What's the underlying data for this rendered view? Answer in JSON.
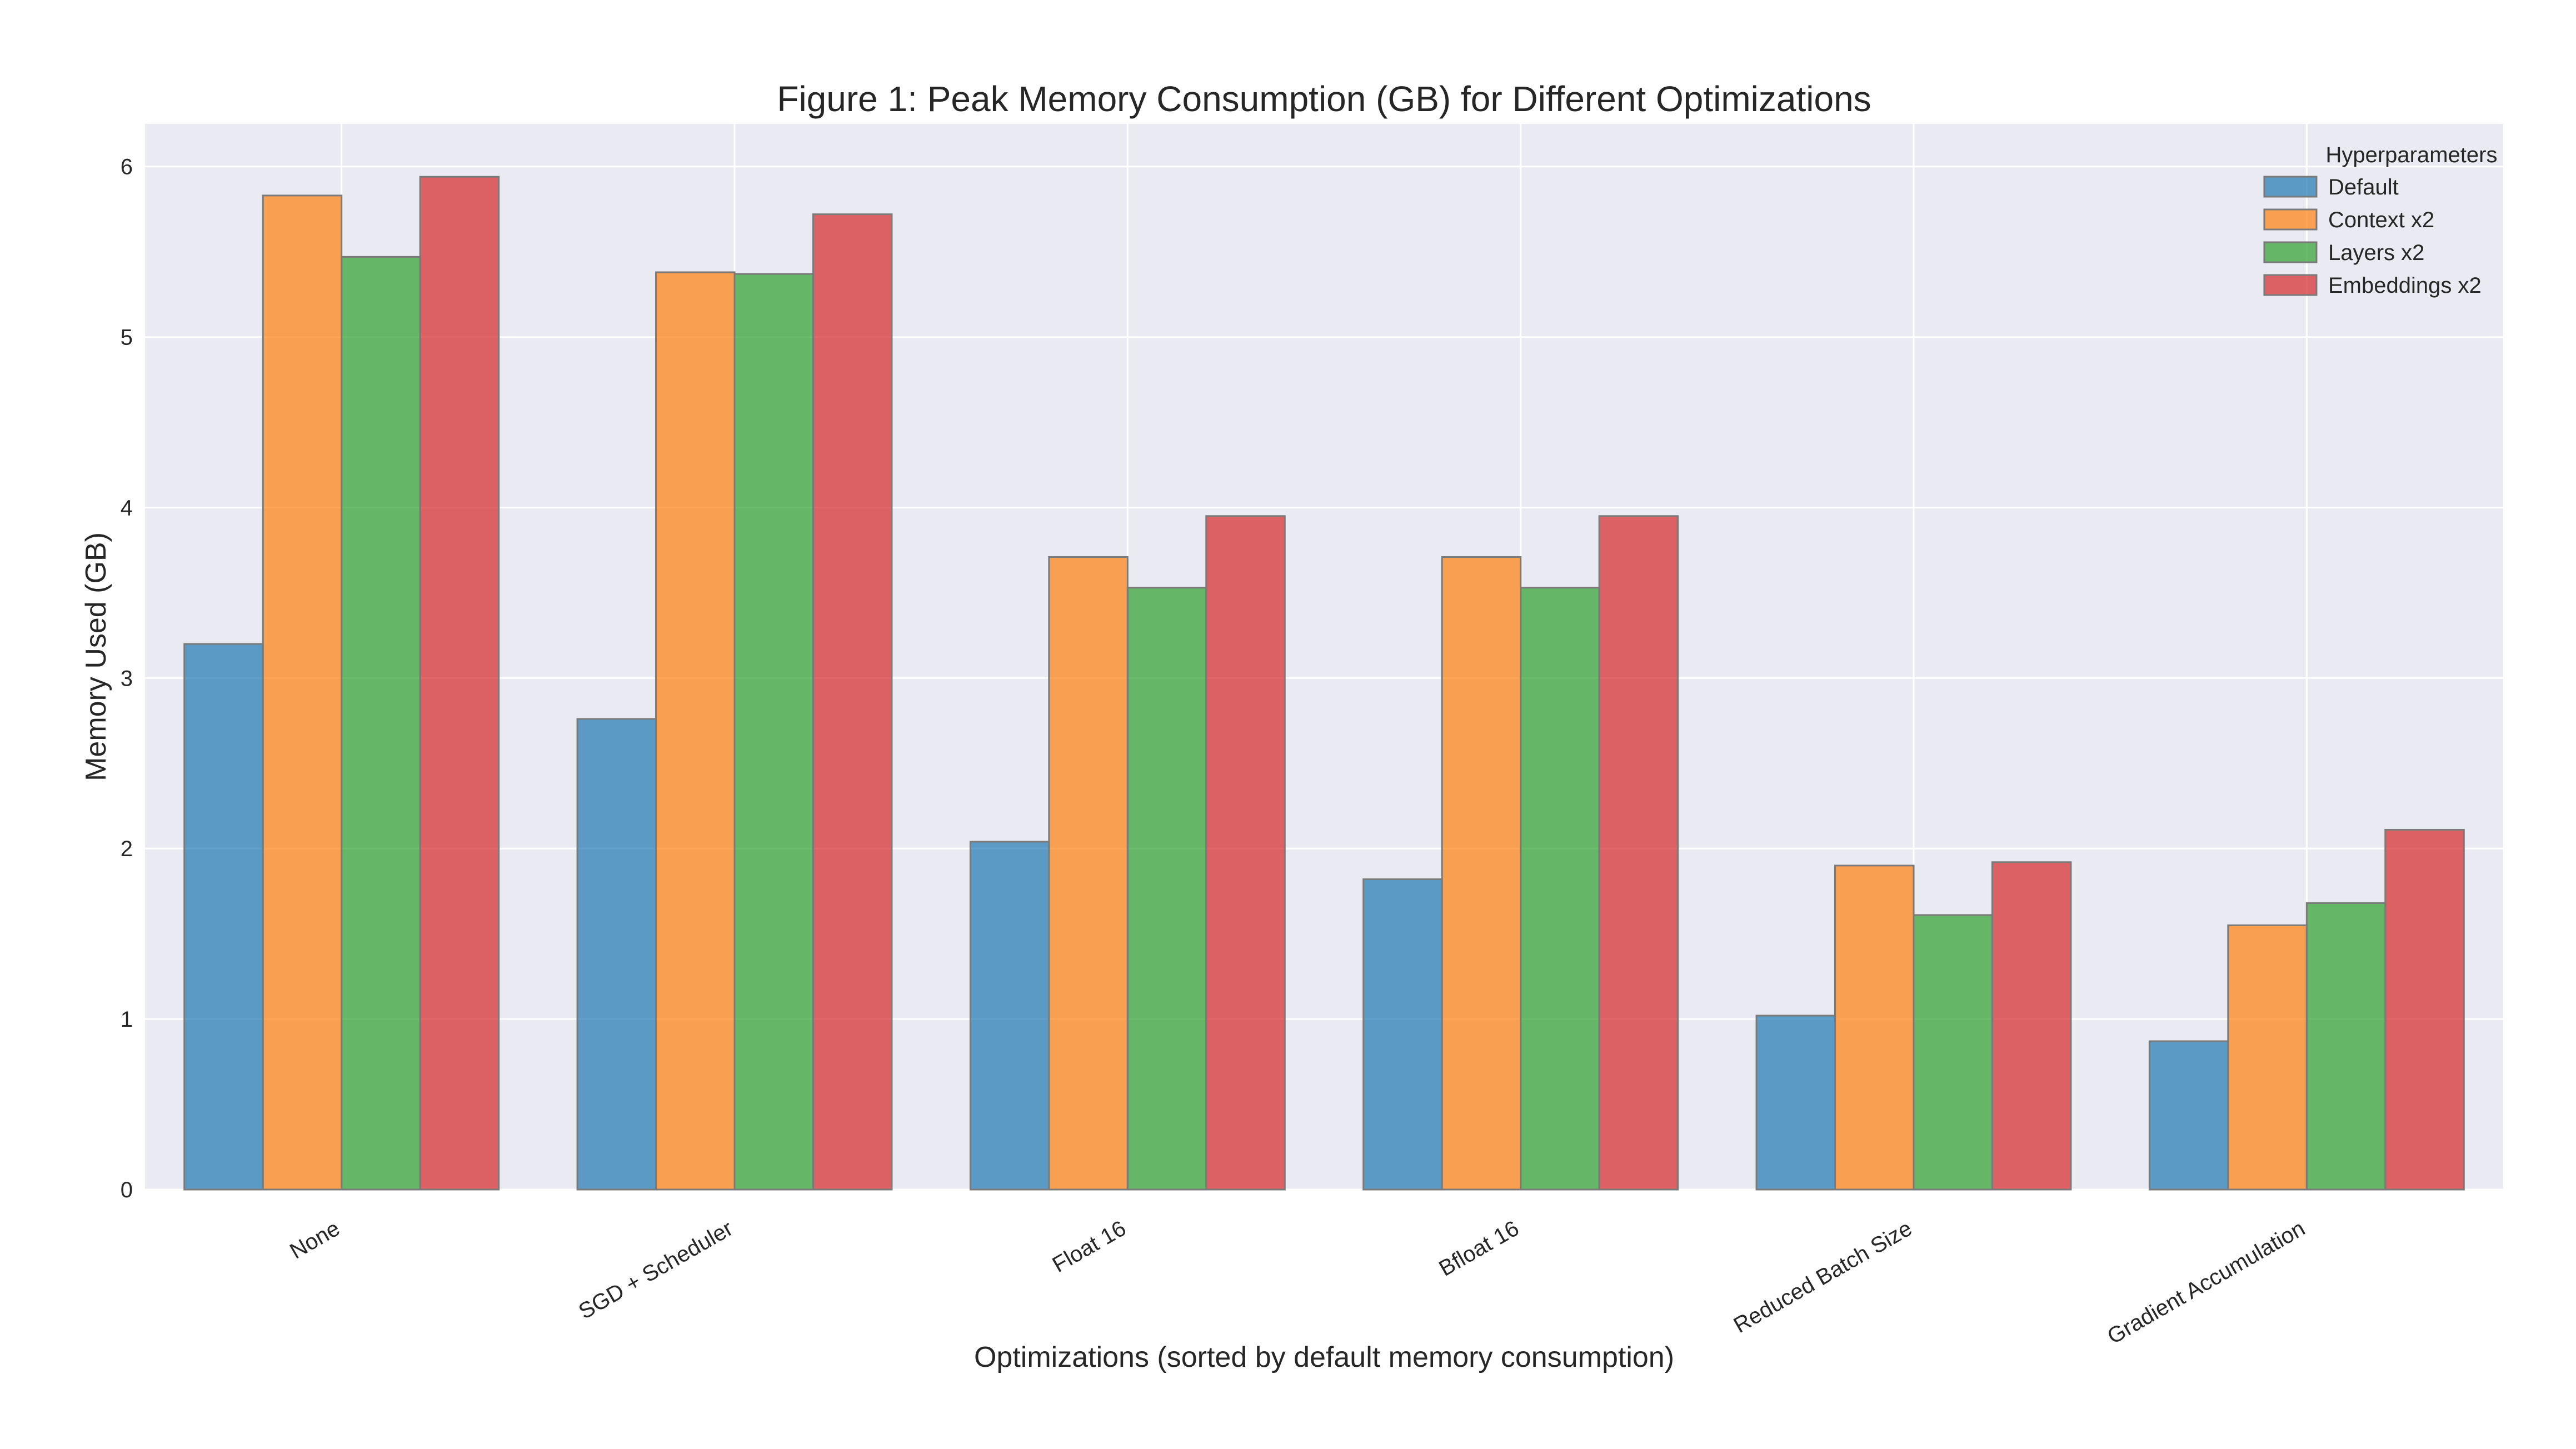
{
  "chart_data": {
    "type": "bar",
    "title": "Figure 1: Peak Memory Consumption (GB) for Different Optimizations",
    "xlabel": "Optimizations (sorted by default memory consumption)",
    "ylabel": "Memory Used (GB)",
    "ylim": [
      0,
      6.25
    ],
    "yticks": [
      "0",
      "1",
      "2",
      "3",
      "4",
      "5",
      "6"
    ],
    "grid": true,
    "legend": {
      "title": "Hyperparameters",
      "placement": "top-right"
    },
    "categories": [
      "None",
      "SGD + Scheduler",
      "Float 16",
      "Bfloat 16",
      "Reduced Batch Size",
      "Gradient Accumulation"
    ],
    "series": [
      {
        "name": "Default",
        "color": "#1f77b4",
        "values": [
          3.2,
          2.76,
          2.04,
          1.82,
          1.02,
          0.87
        ]
      },
      {
        "name": "Context x2",
        "color": "#ff7f0e",
        "values": [
          5.83,
          5.38,
          3.71,
          3.71,
          1.9,
          1.55
        ]
      },
      {
        "name": "Layers x2",
        "color": "#2ca02c",
        "values": [
          5.47,
          5.37,
          3.53,
          3.53,
          1.61,
          1.68
        ]
      },
      {
        "name": "Embeddings x2",
        "color": "#d62728",
        "values": [
          5.94,
          5.72,
          3.95,
          3.95,
          1.92,
          2.11
        ]
      }
    ]
  }
}
